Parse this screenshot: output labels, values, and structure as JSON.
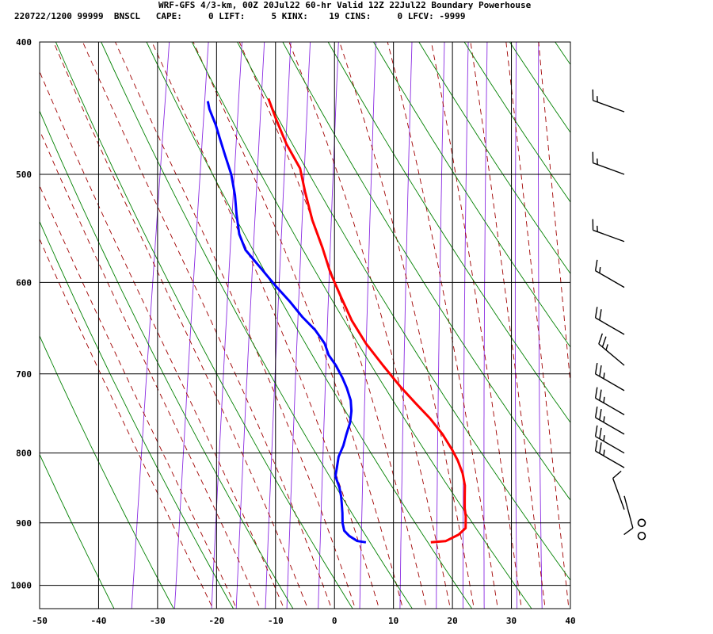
{
  "header": {
    "line1": "WRF-GFS 4/3-km, 00Z 20Jul22 60-hr Valid 12Z 22Jul22 Boundary Powerhouse",
    "line2": "220722/1200 99999  BNSCL   CAPE:     0 LIFT:     5 KINX:    19 CINS:     0 LFCV: -9999"
  },
  "chart_data": {
    "type": "line",
    "chart_kind": "skew-T log-P sounding",
    "x_axis": {
      "ticks": [
        -50,
        -40,
        -30,
        -20,
        -10,
        0,
        10,
        20,
        30,
        40
      ],
      "range": [
        -50,
        40
      ]
    },
    "y_axis": {
      "ticks": [
        400,
        500,
        600,
        700,
        800,
        900,
        1000
      ],
      "range": [
        1040,
        400
      ],
      "scale": "log"
    },
    "grid": true,
    "colors": {
      "temperature": "#ff0000",
      "dewpoint": "#0000ff",
      "dry_adiabat": "#008000",
      "moist_adiabat": "#a00000",
      "mixing_ratio": "#8a2be2",
      "grid": "#000000",
      "wind": "#000000"
    },
    "series": [
      {
        "role": "temperature",
        "points": [
          [
            14.5,
            930
          ],
          [
            17,
            928
          ],
          [
            19,
            918
          ],
          [
            20,
            908
          ],
          [
            19.7,
            890
          ],
          [
            19.3,
            878
          ],
          [
            19,
            862
          ],
          [
            18.7,
            845
          ],
          [
            18,
            828
          ],
          [
            16.8,
            810
          ],
          [
            15.5,
            795
          ],
          [
            13.5,
            775
          ],
          [
            11,
            755
          ],
          [
            8,
            735
          ],
          [
            5,
            715
          ],
          [
            1.5,
            690
          ],
          [
            -2,
            665
          ],
          [
            -5,
            640
          ],
          [
            -7.5,
            615
          ],
          [
            -10,
            590
          ],
          [
            -12,
            566
          ],
          [
            -14.5,
            540
          ],
          [
            -16.5,
            515
          ],
          [
            -18,
            495
          ],
          [
            -21,
            475
          ],
          [
            -23.5,
            455
          ],
          [
            -25.3,
            440
          ]
        ]
      },
      {
        "role": "dewpoint",
        "points": [
          [
            3.5,
            930
          ],
          [
            2,
            928
          ],
          [
            0.5,
            920
          ],
          [
            -0.5,
            912
          ],
          [
            -1,
            900
          ],
          [
            -1.3,
            885
          ],
          [
            -1.7,
            870
          ],
          [
            -2,
            860
          ],
          [
            -2.5,
            848
          ],
          [
            -3.5,
            832
          ],
          [
            -3.5,
            820
          ],
          [
            -3.5,
            805
          ],
          [
            -3,
            790
          ],
          [
            -2.8,
            775
          ],
          [
            -2.5,
            760
          ],
          [
            -2.6,
            745
          ],
          [
            -3,
            732
          ],
          [
            -4,
            717
          ],
          [
            -5,
            705
          ],
          [
            -6.5,
            690
          ],
          [
            -8,
            678
          ],
          [
            -9,
            665
          ],
          [
            -11,
            650
          ],
          [
            -13.5,
            636
          ],
          [
            -16,
            620
          ],
          [
            -19,
            603
          ],
          [
            -21.5,
            588
          ],
          [
            -25,
            568
          ],
          [
            -26.5,
            553
          ],
          [
            -27.5,
            535
          ],
          [
            -28.3,
            518
          ],
          [
            -29.5,
            500
          ],
          [
            -31,
            485
          ],
          [
            -32.5,
            470
          ],
          [
            -33.5,
            460
          ],
          [
            -35,
            448
          ],
          [
            -35.5,
            442
          ]
        ]
      }
    ],
    "winds": [
      {
        "p": 920,
        "calm": true
      },
      {
        "p": 900,
        "calm": true
      },
      {
        "p": 880,
        "dir": 340,
        "speed": 10
      },
      {
        "p": 860,
        "dir": 165,
        "speed": 10
      },
      {
        "p": 820,
        "dir": 300,
        "speed": 25
      },
      {
        "p": 800,
        "dir": 300,
        "speed": 25
      },
      {
        "p": 775,
        "dir": 300,
        "speed": 25
      },
      {
        "p": 750,
        "dir": 300,
        "speed": 25
      },
      {
        "p": 720,
        "dir": 300,
        "speed": 25
      },
      {
        "p": 690,
        "dir": 310,
        "speed": 25
      },
      {
        "p": 655,
        "dir": 300,
        "speed": 20
      },
      {
        "p": 605,
        "dir": 300,
        "speed": 15
      },
      {
        "p": 560,
        "dir": 290,
        "speed": 15
      },
      {
        "p": 500,
        "dir": 290,
        "speed": 15
      },
      {
        "p": 450,
        "dir": 290,
        "speed": 15
      }
    ]
  }
}
